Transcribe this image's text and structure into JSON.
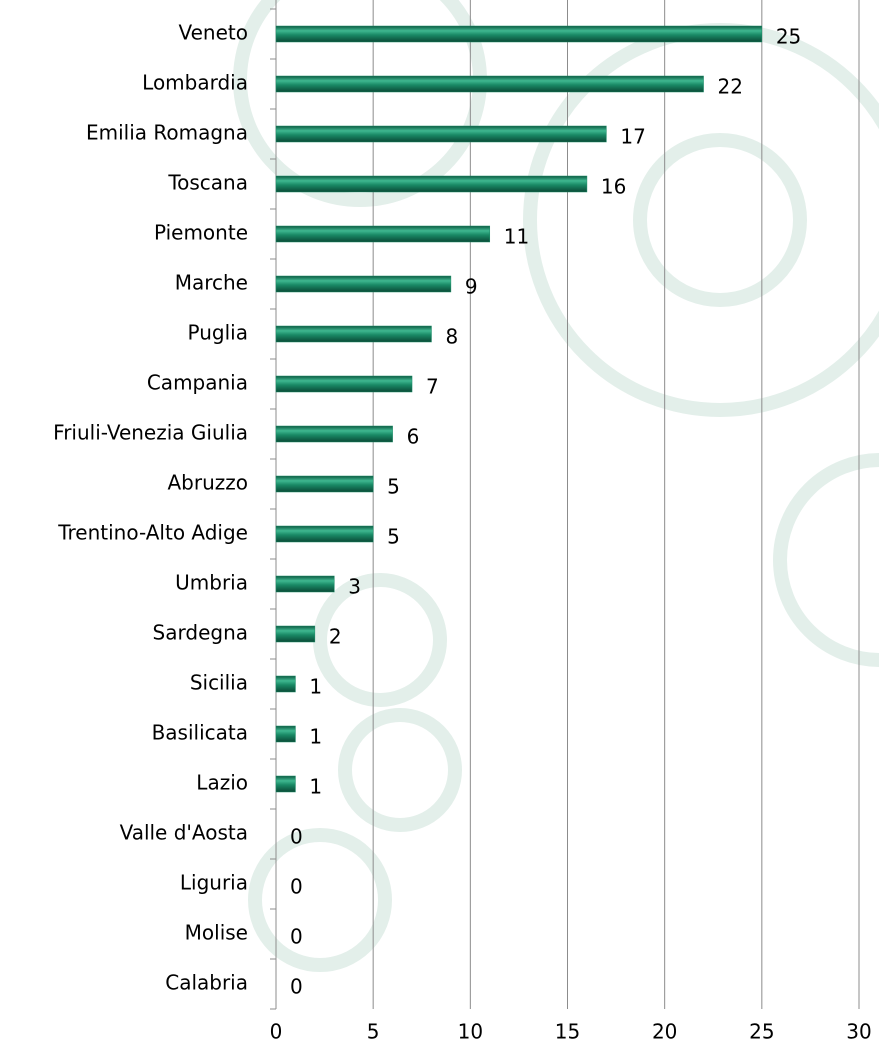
{
  "chart_data": {
    "type": "bar",
    "orientation": "horizontal",
    "categories": [
      "Veneto",
      "Lombardia",
      "Emilia Romagna",
      "Toscana",
      "Piemonte",
      "Marche",
      "Puglia",
      "Campania",
      "Friuli-Venezia Giulia",
      "Abruzzo",
      "Trentino-Alto Adige",
      "Umbria",
      "Sardegna",
      "Sicilia",
      "Basilicata",
      "Lazio",
      "Valle d'Aosta",
      "Liguria",
      "Molise",
      "Calabria"
    ],
    "values": [
      25,
      22,
      17,
      16,
      11,
      9,
      8,
      7,
      6,
      5,
      5,
      3,
      2,
      1,
      1,
      1,
      0,
      0,
      0,
      0
    ],
    "color": "#1a8a66",
    "xlim": [
      0,
      30
    ],
    "xticks": [
      0,
      5,
      10,
      15,
      20,
      25,
      30
    ],
    "grid": true
  }
}
